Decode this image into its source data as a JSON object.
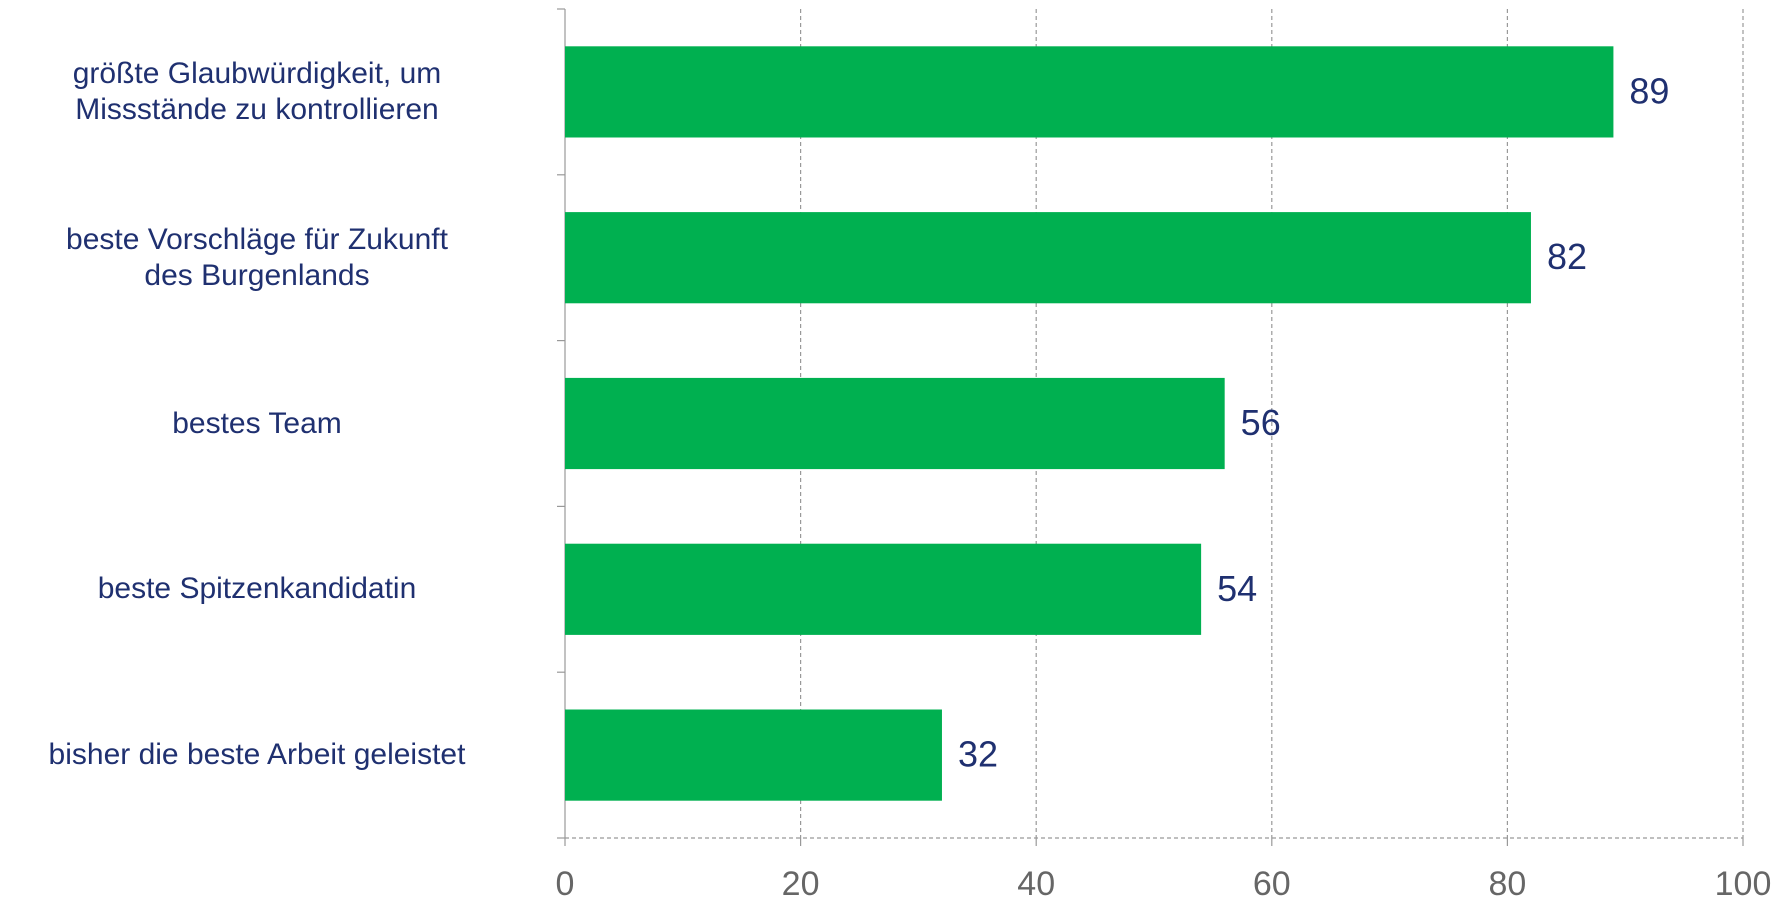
{
  "chart_data": {
    "type": "barh",
    "categories": [
      "größte Glaubwürdigkeit, um\nMissstände zu kontrollieren",
      "beste Vorschläge für Zukunft\ndes Burgenlands",
      "bestes Team",
      "beste Spitzenkandidatin",
      "bisher die beste Arbeit geleistet"
    ],
    "values": [
      89,
      82,
      56,
      54,
      32
    ],
    "color": "#00b050",
    "xlim": [
      0,
      100
    ],
    "xticks": [
      0,
      20,
      40,
      60,
      80,
      100
    ],
    "grid": true
  }
}
